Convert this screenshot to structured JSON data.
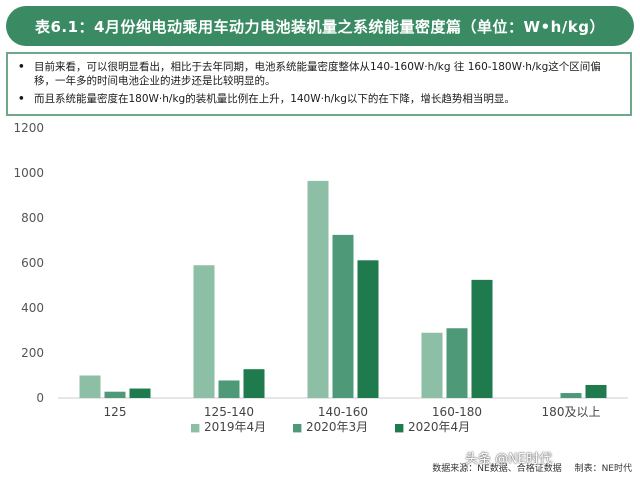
{
  "title": "表6.1：4月份纯电动乘用车动力电池装机量之系统能量密度篇（单位：W•h/kg）",
  "notes": [
    "目前来看，可以很明显看出，相比于去年同期，电池系统能量密度整体从140-160W·h/kg 往 160-180W·h/kg这个区间偏移，一年多的时间电池企业的进步还是比较明显的。",
    "而且系统能量密度在180W·h/kg的装机量比例在上升，140W·h/kg以下的在下降，增长趋势相当明显。"
  ],
  "bullet_symbol": "•",
  "chart_data": {
    "type": "bar",
    "categories": [
      "125",
      "125-140",
      "140-160",
      "160-180",
      "180及以上"
    ],
    "series": [
      {
        "name": "2019年4月",
        "values": [
          100,
          590,
          965,
          290,
          0
        ],
        "color": "#8dbfa6"
      },
      {
        "name": "2020年3月",
        "values": [
          28,
          78,
          725,
          310,
          22
        ],
        "color": "#4e9977"
      },
      {
        "name": "2020年4月",
        "values": [
          42,
          128,
          612,
          525,
          58
        ],
        "color": "#1f7a4d"
      }
    ],
    "yticks": [
      "0",
      "200",
      "400",
      "600",
      "800",
      "1000",
      "1200"
    ],
    "ylim": [
      0,
      1200
    ],
    "legend_position": "bottom",
    "legend_symbol": "■"
  },
  "source": {
    "left": "数据来源：NE数据、合格证数据",
    "right": "制表：NE时代"
  },
  "watermark": "头条 @NE时代"
}
